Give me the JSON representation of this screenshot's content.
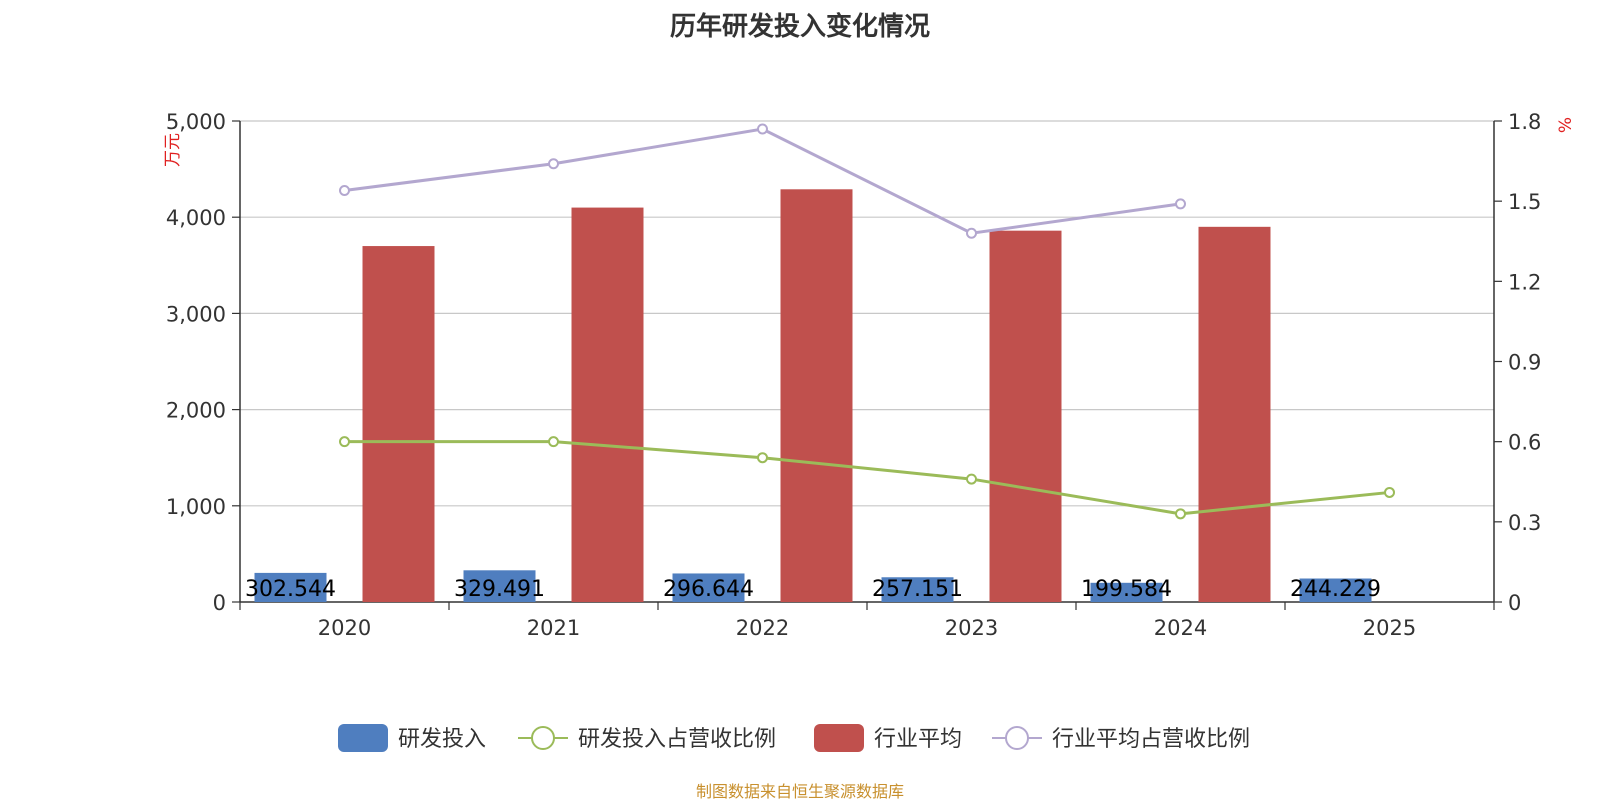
{
  "chart_data": {
    "type": "bar",
    "title": "历年研发投入变化情况",
    "categories": [
      "2020",
      "2021",
      "2022",
      "2023",
      "2024",
      "2025"
    ],
    "y_left": {
      "unit": "万元",
      "ylim": [
        0,
        5000
      ],
      "ticks": [
        "0",
        "1,000",
        "2,000",
        "3,000",
        "4,000",
        "5,000"
      ]
    },
    "y_right": {
      "unit": "%",
      "ylim": [
        0,
        1.8
      ],
      "ticks": [
        "0",
        "0.3",
        "0.6",
        "0.9",
        "1.2",
        "1.5",
        "1.8"
      ]
    },
    "series": [
      {
        "name": "研发投入",
        "kind": "bar",
        "axis": "left",
        "color": "#4f7ebf",
        "values": [
          302.544,
          329.491,
          296.644,
          257.151,
          199.584,
          244.229
        ],
        "labels": [
          "302.544",
          "329.491",
          "296.644",
          "257.151",
          "199.584",
          "244.229"
        ]
      },
      {
        "name": "研发投入占营收比例",
        "kind": "line",
        "axis": "right",
        "color": "#9bbb59",
        "values": [
          0.6,
          0.6,
          0.54,
          0.46,
          0.33,
          0.41
        ]
      },
      {
        "name": "行业平均",
        "kind": "bar",
        "axis": "left",
        "color": "#c0504d",
        "values": [
          3700,
          4100,
          4290,
          3860,
          3900,
          null
        ]
      },
      {
        "name": "行业平均占营收比例",
        "kind": "line",
        "axis": "right",
        "color": "#b3a7cf",
        "values": [
          1.54,
          1.64,
          1.77,
          1.38,
          1.49,
          null
        ]
      }
    ],
    "grid": true,
    "legend_position": "bottom"
  },
  "source_note": "制图数据来自恒生聚源数据库"
}
